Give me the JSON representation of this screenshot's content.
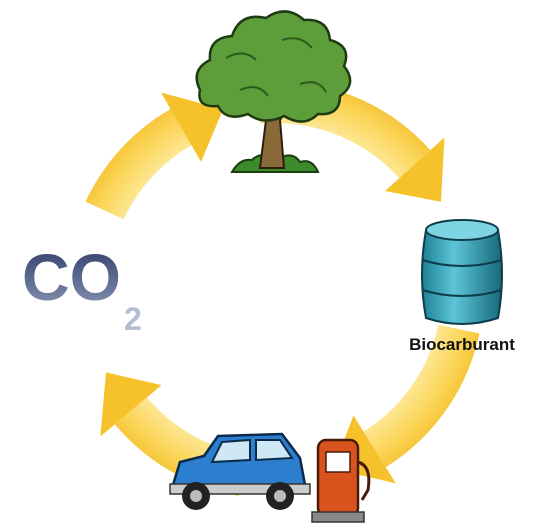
{
  "nodes": [
    {
      "label": "CO",
      "subscript": "2"
    },
    {
      "label": "Biocarburant"
    }
  ]
}
